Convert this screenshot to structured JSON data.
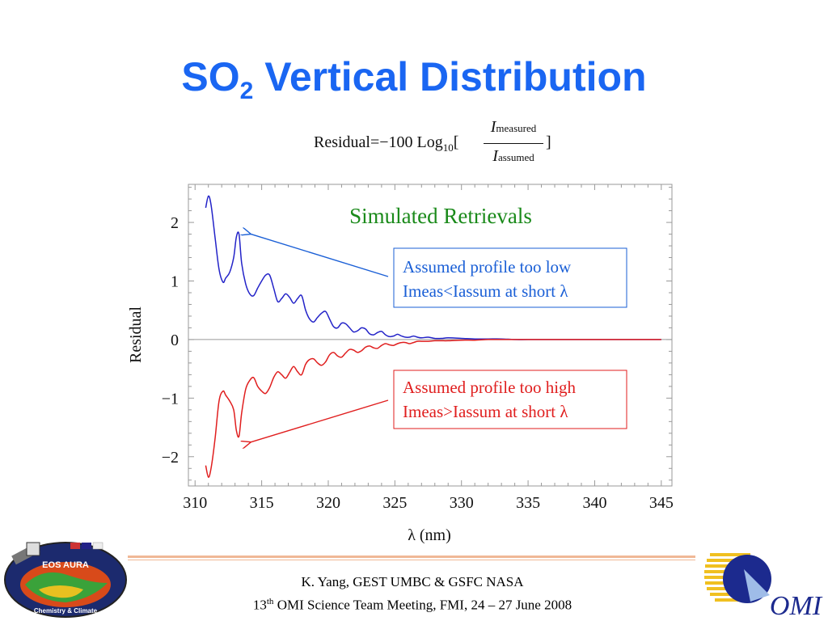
{
  "slide": {
    "title_main": "SO",
    "title_sub": "2",
    "title_rest": " Vertical Distribution"
  },
  "formula": {
    "lhs": "Residual=−100 Log",
    "log_base": "10",
    "open_bracket": "[",
    "close_bracket": "]",
    "num_symbol": "I",
    "num_sub": "measured",
    "den_symbol": "I",
    "den_sub": "assumed"
  },
  "chart_data": {
    "type": "line",
    "title": "Simulated Retrievals",
    "xlabel": "λ (nm)",
    "ylabel": "Residual",
    "xlim": [
      309.5,
      345.8
    ],
    "ylim": [
      -2.5,
      2.65
    ],
    "x_ticks": [
      310,
      315,
      320,
      325,
      330,
      335,
      340,
      345
    ],
    "x_tick_labels": [
      "310",
      "315",
      "320",
      "325",
      "330",
      "335",
      "340",
      "345"
    ],
    "y_ticks": [
      2,
      1,
      0,
      -1,
      -2
    ],
    "y_tick_labels": [
      "2",
      "1",
      "0",
      "−1",
      "−2"
    ],
    "series": [
      {
        "color": "#2323c8",
        "x": [
          310.8,
          311.0,
          311.2,
          311.5,
          311.8,
          312.1,
          312.3,
          312.6,
          312.9,
          313.1,
          313.3,
          313.5,
          313.8,
          314.1,
          314.4,
          314.7,
          315.0,
          315.3,
          315.6,
          315.9,
          316.2,
          316.5,
          316.8,
          317.1,
          317.4,
          317.7,
          318.0,
          318.3,
          318.6,
          318.9,
          319.2,
          319.5,
          319.8,
          320.1,
          320.4,
          320.7,
          321.0,
          321.3,
          321.6,
          321.9,
          322.2,
          322.5,
          322.8,
          323.1,
          323.4,
          323.7,
          324.0,
          324.3,
          324.6,
          324.9,
          325.2,
          325.5,
          325.8,
          326.1,
          326.4,
          326.7,
          327.0,
          327.5,
          328.0,
          328.5,
          329.0,
          330.0,
          331.0,
          332.0,
          333.0,
          334.0,
          335.0,
          337.0,
          340.0,
          342.0,
          345.0
        ],
        "y": [
          2.25,
          2.45,
          2.3,
          1.75,
          1.2,
          0.98,
          1.05,
          1.15,
          1.4,
          1.75,
          1.8,
          1.3,
          0.95,
          0.78,
          0.75,
          0.88,
          1.0,
          1.1,
          1.1,
          0.88,
          0.65,
          0.7,
          0.78,
          0.72,
          0.62,
          0.7,
          0.75,
          0.5,
          0.35,
          0.3,
          0.38,
          0.45,
          0.48,
          0.35,
          0.22,
          0.2,
          0.28,
          0.27,
          0.2,
          0.13,
          0.15,
          0.2,
          0.18,
          0.1,
          0.08,
          0.12,
          0.14,
          0.08,
          0.05,
          0.06,
          0.09,
          0.06,
          0.04,
          0.04,
          0.06,
          0.04,
          0.03,
          0.04,
          0.02,
          0.02,
          0.03,
          0.02,
          0.01,
          0.01,
          0.01,
          0.0,
          0.0,
          0.0,
          0.0,
          0.0,
          0.0
        ]
      },
      {
        "color": "#e01e1e",
        "x": [
          310.8,
          311.0,
          311.2,
          311.5,
          311.8,
          312.1,
          312.3,
          312.6,
          312.9,
          313.1,
          313.3,
          313.5,
          313.8,
          314.1,
          314.4,
          314.7,
          315.0,
          315.3,
          315.6,
          315.9,
          316.2,
          316.5,
          316.8,
          317.1,
          317.4,
          317.7,
          318.0,
          318.3,
          318.6,
          318.9,
          319.2,
          319.5,
          319.8,
          320.1,
          320.4,
          320.7,
          321.0,
          321.3,
          321.6,
          321.9,
          322.2,
          322.5,
          322.8,
          323.1,
          323.4,
          323.7,
          324.0,
          324.3,
          324.6,
          324.9,
          325.2,
          325.5,
          325.8,
          326.1,
          326.4,
          326.7,
          327.0,
          327.5,
          328.0,
          328.5,
          329.0,
          330.0,
          331.0,
          332.0,
          333.0,
          334.0,
          335.0,
          337.0,
          340.0,
          342.0,
          345.0
        ],
        "y": [
          -2.15,
          -2.35,
          -2.2,
          -1.7,
          -1.05,
          -0.88,
          -0.95,
          -1.05,
          -1.2,
          -1.55,
          -1.65,
          -1.25,
          -0.85,
          -0.7,
          -0.65,
          -0.8,
          -0.88,
          -0.92,
          -0.82,
          -0.65,
          -0.55,
          -0.6,
          -0.66,
          -0.56,
          -0.46,
          -0.55,
          -0.6,
          -0.42,
          -0.34,
          -0.33,
          -0.4,
          -0.44,
          -0.38,
          -0.26,
          -0.22,
          -0.28,
          -0.3,
          -0.23,
          -0.17,
          -0.18,
          -0.22,
          -0.19,
          -0.13,
          -0.11,
          -0.14,
          -0.15,
          -0.1,
          -0.07,
          -0.09,
          -0.1,
          -0.07,
          -0.05,
          -0.05,
          -0.07,
          -0.05,
          -0.03,
          -0.03,
          -0.03,
          -0.02,
          -0.02,
          -0.02,
          -0.01,
          -0.01,
          0.0,
          0.0,
          0.0,
          0.0,
          0.0,
          0.0,
          0.0,
          0.0
        ]
      }
    ],
    "zero_line": 0,
    "annotations": [
      {
        "color": "#1a5fd6",
        "line1": "Assumed profile too low",
        "line2": "Imeas<Iassum at short λ",
        "arrow_to_x": 314.2,
        "arrow_to_y": 1.8
      },
      {
        "color": "#e01e1e",
        "line1": "Assumed profile too high",
        "line2": "Imeas>Iassum at short λ",
        "arrow_to_x": 314.2,
        "arrow_to_y": -1.75
      }
    ],
    "colors": {
      "title": "#1a8a1a",
      "frame": "#999999",
      "zero_line": "#999999"
    }
  },
  "footer": {
    "line1": "K. Yang, GEST UMBC  & GSFC NASA",
    "line2_pre": "13",
    "line2_sup": "th",
    "line2_post": " OMI Science Team Meeting, FMI, 24 – 27 June 2008"
  },
  "logos": {
    "left_top": "EOS AURA",
    "left_bottom": "Chemistry & Climate",
    "right": "OMI"
  }
}
